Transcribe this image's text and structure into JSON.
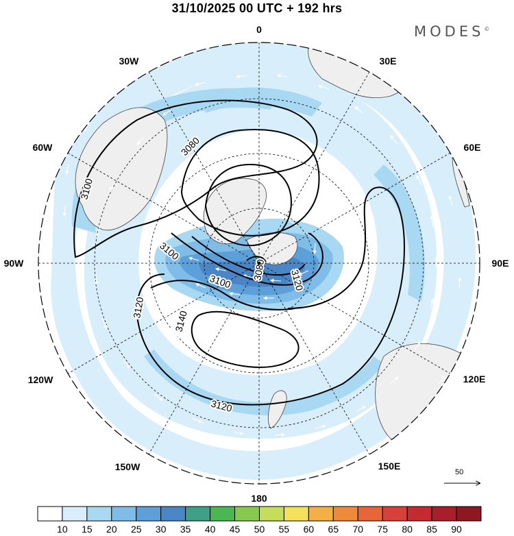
{
  "header": {
    "title": "31/10/2025  00 UTC  + 192 hrs",
    "brand": "MODES",
    "brand_mark": "©"
  },
  "map": {
    "projection": "south-polar-stereographic",
    "longitude_labels": {
      "l0": "0",
      "l30e": "30E",
      "l60e": "60E",
      "l90e": "90E",
      "l120e": "120E",
      "l150e": "150E",
      "l180": "180",
      "l150w": "150W",
      "l120w": "120W",
      "l90w": "90W",
      "l60w": "60W",
      "l30w": "30W"
    },
    "contour_labels": [
      "3080",
      "3100",
      "3100",
      "3080",
      "3120",
      "3100",
      "3140",
      "3120",
      "3120"
    ],
    "colors": {
      "land": "#efefef",
      "c15": "#d8eefb",
      "c20": "#a9d8f3",
      "c25": "#7fbde8",
      "c30": "#5c9fd9",
      "c35": "#4a86c6"
    }
  },
  "reference_vector": {
    "value": "50"
  },
  "colorbar": {
    "colors": [
      "#ffffff",
      "#d8eefb",
      "#a9d8f3",
      "#7fbde8",
      "#5c9fd9",
      "#4a86c6",
      "#3fa08a",
      "#4bb752",
      "#86c94e",
      "#c5dd5a",
      "#f5e05a",
      "#f2b047",
      "#ef8a3a",
      "#e8653a",
      "#d8403a",
      "#c42a30",
      "#a81e2a",
      "#8c1820"
    ],
    "labels": [
      "10",
      "15",
      "20",
      "25",
      "30",
      "35",
      "40",
      "45",
      "50",
      "55",
      "60",
      "65",
      "70",
      "75",
      "80",
      "85",
      "90"
    ]
  }
}
